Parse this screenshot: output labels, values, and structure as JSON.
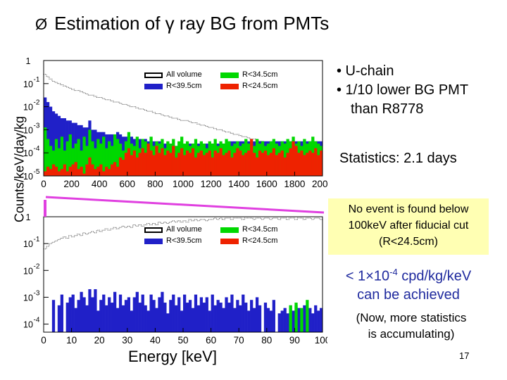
{
  "title": {
    "arrow_glyph": "Ø",
    "text": "Estimation of γ ray BG from PMTs"
  },
  "ylabel": "Counts/keV/day/kg",
  "xlabel": "Energy [keV]",
  "bullets": [
    "• U-chain",
    "• 1/10 lower BG PMT",
    "than R8778"
  ],
  "statistics": "Statistics: 2.1 days",
  "note": [
    "No event is found below",
    "100keV after fiducial cut",
    "(R<24.5cm)"
  ],
  "limit": {
    "prefix": "< 1×10",
    "exp": "-4",
    "suffix": " cpd/kg/keV",
    "line2": "can be achieved"
  },
  "now": [
    "(Now, more statistics",
    "is accumulating)"
  ],
  "page_number": "17",
  "legend": [
    {
      "label": "All volume",
      "color": "#ffffff"
    },
    {
      "label": "R<39.5cm",
      "color": "#2020c8"
    },
    {
      "label": "R<34.5cm",
      "color": "#00d800"
    },
    {
      "label": "R<24.5cm",
      "color": "#ee2200"
    }
  ],
  "chart_data": [
    {
      "type": "bar",
      "xlim": [
        0,
        2000
      ],
      "x_ticks": [
        "0",
        "200",
        "400",
        "600",
        "800",
        "1000",
        "1200",
        "1400",
        "1600",
        "1800",
        "2000"
      ],
      "y_ticks": [
        {
          "base": "1",
          "exp": ""
        },
        {
          "base": "10",
          "exp": "-1"
        },
        {
          "base": "10",
          "exp": "-2"
        },
        {
          "base": "10",
          "exp": "-3"
        },
        {
          "base": "10",
          "exp": "-4"
        },
        {
          "base": "10",
          "exp": "-5"
        }
      ],
      "ylim_log10": [
        -5,
        0
      ],
      "bin_width": 20,
      "series": [
        {
          "name": "All volume",
          "values": [
            -0.6,
            -0.7,
            -0.8,
            -0.9,
            -0.95,
            -1.0,
            -1.05,
            -1.1,
            -1.15,
            -1.2,
            -1.25,
            -1.3,
            -1.3,
            -1.35,
            -1.4,
            -1.45,
            -1.5,
            -1.5,
            -1.55,
            -1.6,
            -1.6,
            -1.65,
            -1.7,
            -1.7,
            -1.75,
            -1.8,
            -1.8,
            -1.85,
            -1.9,
            -1.9,
            -1.95,
            -2.0,
            -2.0,
            -2.05,
            -2.1,
            -2.1,
            -2.15,
            -2.2,
            -2.2,
            -2.25,
            -2.3,
            -2.3,
            -2.35,
            -2.4,
            -2.4,
            -2.45,
            -2.5,
            -2.5,
            -2.55,
            -2.6,
            -2.6,
            -2.6,
            -2.65,
            -2.7,
            -2.7,
            -2.75,
            -2.8,
            -2.8,
            -2.85,
            -2.9,
            -2.9,
            -2.95,
            -3.0,
            -3.0,
            -3.05,
            -3.1,
            -3.1,
            -3.15,
            -3.2,
            -3.2,
            -3.25,
            -3.3,
            -3.3,
            -3.35,
            -3.4,
            -3.4,
            -3.45,
            -3.5,
            -3.5,
            -3.55,
            -3.6,
            -3.6,
            -3.65,
            -3.7,
            -3.7,
            -3.75,
            -3.8,
            -3.8,
            -3.85,
            -3.9,
            -3.9,
            -3.95,
            -4.0,
            -4.0,
            -4.05,
            -4.1,
            -4.1,
            -4.15,
            -4.2,
            -4.2
          ]
        },
        {
          "name": "R<39.5cm",
          "values": [
            -1.6,
            -1.8,
            -2.0,
            -2.2,
            -2.3,
            -2.4,
            -2.5,
            -2.5,
            -2.6,
            -2.6,
            -2.7,
            -2.7,
            -2.8,
            -2.8,
            -2.9,
            -2.9,
            -2.6,
            -3.0,
            -3.0,
            -3.1,
            -3.1,
            -3.1,
            -3.2,
            -3.2,
            -3.2,
            -3.2,
            -3.1,
            -3.2,
            -3.3,
            -3.3,
            -3.3,
            -3.3,
            -3.4,
            -3.4,
            -3.4,
            -3.4,
            -3.4,
            -3.5,
            -3.5,
            -3.5,
            -3.5,
            -3.5,
            -3.6,
            -3.6,
            -3.6,
            -3.6,
            -3.7,
            -3.7,
            -3.7,
            -3.7,
            -3.7,
            -3.7,
            -3.6,
            -3.6,
            -3.6,
            -3.6,
            -3.6,
            -3.6,
            -3.6,
            -3.6,
            -3.6,
            -3.6,
            -3.6,
            -3.6,
            -3.6,
            -3.6,
            -3.5,
            -3.5,
            -3.5,
            -3.5,
            -3.5,
            -3.5,
            -3.5,
            -3.5,
            -3.5,
            -3.5,
            -3.5,
            -3.5,
            -3.5,
            -3.5,
            -3.5,
            -3.5,
            -3.5,
            -3.5,
            -3.5,
            -3.5,
            -3.5,
            -3.5,
            -3.5,
            -3.5,
            -3.5,
            -3.5,
            -3.5,
            -3.5,
            -3.5,
            -3.5,
            -3.5,
            -3.5,
            -3.5,
            -3.5
          ]
        },
        {
          "name": "R<34.5cm",
          "values": [
            -2.9,
            -3.4,
            -3.7,
            -3.9,
            -3.4,
            -3.8,
            -3.3,
            -3.9,
            -3.5,
            -3.2,
            -3.8,
            -3.6,
            -3.4,
            -3.9,
            -3.3,
            -3.7,
            -3.0,
            -3.5,
            -3.8,
            -3.4,
            -3.6,
            -3.3,
            -3.8,
            -3.5,
            -3.7,
            -3.2,
            -3.4,
            -3.6,
            -3.9,
            -3.5,
            -3.1,
            -3.6,
            -3.7,
            -3.3,
            -3.8,
            -3.4,
            -3.5,
            -3.6,
            -3.3,
            -3.7,
            -3.5,
            -3.6,
            -3.4,
            -3.8,
            -3.5,
            -3.6,
            -3.4,
            -3.7,
            -3.5,
            -3.3,
            -3.6,
            -3.5,
            -3.7,
            -3.6,
            -3.4,
            -3.7,
            -3.5,
            -3.6,
            -3.8,
            -3.5,
            -3.6,
            -3.4,
            -3.7,
            -3.5,
            -3.6,
            -3.4,
            -3.5,
            -3.7,
            -3.6,
            -3.5,
            -3.7,
            -3.6,
            -3.4,
            -3.6,
            -3.5,
            -3.7,
            -3.4,
            -3.6,
            -3.5,
            -3.7,
            -3.6,
            -3.5,
            -3.4,
            -3.6,
            -3.7,
            -3.5,
            -3.6,
            -3.4,
            -3.5,
            -3.3,
            -3.6,
            -3.5,
            -3.7,
            -3.4,
            -3.6,
            -3.5,
            -3.3,
            -3.5,
            -3.6,
            -3.7
          ]
        },
        {
          "name": "R<24.5cm",
          "values": [
            -4.8,
            -4.6,
            -4.7,
            -4.5,
            -4.6,
            -4.8,
            -4.7,
            -4.5,
            -4.8,
            -4.6,
            -4.5,
            -4.4,
            -4.7,
            -4.6,
            -4.9,
            -4.5,
            -4.2,
            -4.5,
            -4.7,
            -4.6,
            -4.5,
            -4.8,
            -4.6,
            -4.7,
            -4.5,
            -4.4,
            -4.6,
            -4.2,
            -4.3,
            -4.0,
            -3.8,
            -4.1,
            -3.9,
            -4.2,
            -4.0,
            -3.8,
            -4.0,
            -3.6,
            -3.9,
            -4.1,
            -3.7,
            -4.0,
            -3.8,
            -4.1,
            -3.9,
            -4.0,
            -3.7,
            -4.2,
            -4.0,
            -3.8,
            -4.1,
            -3.9,
            -4.0,
            -3.8,
            -4.2,
            -4.0,
            -3.9,
            -4.1,
            -4.0,
            -3.9,
            -4.2,
            -3.9,
            -4.0,
            -3.8,
            -4.1,
            -4.0,
            -3.9,
            -4.2,
            -4.0,
            -3.8,
            -3.9,
            -4.1,
            -4.0,
            -3.9,
            -3.4,
            -4.0,
            -4.2,
            -3.9,
            -4.0,
            -3.9,
            -4.1,
            -4.0,
            -3.8,
            -4.1,
            -4.0,
            -3.9,
            -4.2,
            -4.0,
            -3.8,
            -3.5,
            -3.7,
            -4.0,
            -3.9,
            -4.1,
            -4.0,
            -3.9,
            -4.0,
            -3.8,
            -4.1,
            -3.9
          ]
        }
      ]
    },
    {
      "type": "bar",
      "xlim": [
        0,
        100
      ],
      "x_ticks": [
        "0",
        "10",
        "20",
        "30",
        "40",
        "50",
        "60",
        "70",
        "80",
        "90",
        "100"
      ],
      "y_ticks": [
        {
          "base": "1",
          "exp": ""
        },
        {
          "base": "10",
          "exp": "-1"
        },
        {
          "base": "10",
          "exp": "-2"
        },
        {
          "base": "10",
          "exp": "-3"
        },
        {
          "base": "10",
          "exp": "-4"
        }
      ],
      "ylim_log10": [
        -4.3,
        0
      ],
      "bin_width": 1,
      "series": [
        {
          "name": "All volume",
          "values": [
            -1.2,
            -1.1,
            -1.0,
            -0.95,
            -0.9,
            -0.85,
            -0.8,
            -0.75,
            -0.8,
            -0.7,
            -0.75,
            -0.7,
            -0.65,
            -0.7,
            -0.6,
            -0.65,
            -0.6,
            -0.55,
            -0.6,
            -0.5,
            -0.55,
            -0.5,
            -0.45,
            -0.5,
            -0.45,
            -0.4,
            -0.45,
            -0.4,
            -0.35,
            -0.4,
            -0.35,
            -0.4,
            -0.3,
            -0.35,
            -0.3,
            -0.35,
            -0.3,
            -0.25,
            -0.3,
            -0.25,
            -0.3,
            -0.2,
            -0.25,
            -0.2,
            -0.25,
            -0.2,
            -0.15,
            -0.2,
            -0.15,
            -0.2,
            -0.15,
            -0.2,
            -0.1,
            -0.15,
            -0.1,
            -0.15,
            -0.1,
            -0.1,
            -0.15,
            -0.1,
            -0.1,
            -0.05,
            -0.1,
            -0.05,
            -0.1,
            -0.05,
            -0.05,
            -0.1,
            -0.05,
            -0.05,
            -0.05,
            -0.1,
            -0.05,
            -0.05,
            -0.05,
            -0.1,
            -0.05,
            -0.05,
            -0.1,
            -0.05,
            -0.05,
            -0.1,
            -0.05,
            -0.05,
            -0.1,
            -0.05,
            -0.05,
            -0.1,
            -0.05,
            -0.05,
            -0.1,
            -0.05,
            -0.05,
            -0.1,
            -0.05,
            -0.05,
            -0.1,
            -0.05,
            -0.05,
            -0.1
          ]
        },
        {
          "name": "R<39.5cm",
          "values": [
            -4.3,
            -4.3,
            -4.3,
            -3.1,
            -4.3,
            -3.3,
            -2.9,
            -4.3,
            -3.2,
            -3.0,
            -2.9,
            -3.4,
            -3.1,
            -2.8,
            -3.0,
            -3.3,
            -2.7,
            -3.0,
            -2.7,
            -3.5,
            -3.1,
            -2.9,
            -3.3,
            -3.0,
            -3.2,
            -2.8,
            -3.4,
            -2.9,
            -3.3,
            -3.1,
            -3.0,
            -3.5,
            -3.0,
            -2.8,
            -3.2,
            -2.9,
            -3.3,
            -3.5,
            -2.9,
            -3.1,
            -3.4,
            -3.0,
            -2.8,
            -3.2,
            -3.6,
            -3.1,
            -2.9,
            -3.3,
            -3.0,
            -3.5,
            -2.9,
            -3.2,
            -3.1,
            -3.4,
            -2.9,
            -3.3,
            -3.0,
            -3.2,
            -3.0,
            -3.5,
            -2.9,
            -3.3,
            -3.1,
            -3.2,
            -3.4,
            -3.0,
            -3.2,
            -2.9,
            -3.4,
            -3.1,
            -3.3,
            -2.9,
            -3.2,
            -3.5,
            -3.1,
            -3.4,
            -3.0,
            -3.3,
            -4.3,
            -3.2,
            -3.4,
            -3.5,
            -3.1,
            -4.3,
            -3.6,
            -3.5,
            -3.4,
            -3.6,
            -3.3,
            -3.5,
            -3.3,
            -3.4,
            -3.6,
            -3.3,
            -3.5,
            -3.4,
            -3.6,
            -3.3,
            -3.5,
            -3.4
          ]
        },
        {
          "name": "R<34.5cm",
          "values": [
            -4.3,
            -4.3,
            -4.3,
            -4.3,
            -4.3,
            -4.3,
            -4.3,
            -4.3,
            -4.3,
            -4.3,
            -4.3,
            -4.3,
            -4.3,
            -4.3,
            -4.3,
            -4.3,
            -4.3,
            -4.3,
            -4.3,
            -4.3,
            -4.3,
            -4.3,
            -4.3,
            -4.3,
            -4.3,
            -4.3,
            -4.3,
            -4.3,
            -4.3,
            -4.3,
            -4.3,
            -4.3,
            -4.3,
            -4.3,
            -4.3,
            -4.3,
            -4.3,
            -4.3,
            -4.3,
            -4.3,
            -4.3,
            -4.3,
            -4.3,
            -4.3,
            -4.3,
            -4.3,
            -4.3,
            -4.3,
            -4.3,
            -4.3,
            -4.3,
            -4.3,
            -4.3,
            -4.3,
            -4.3,
            -4.3,
            -4.3,
            -4.3,
            -4.3,
            -4.3,
            -4.3,
            -4.3,
            -4.3,
            -4.3,
            -4.3,
            -4.3,
            -4.3,
            -4.3,
            -4.3,
            -4.3,
            -4.3,
            -4.3,
            -4.3,
            -4.3,
            -4.3,
            -4.3,
            -4.3,
            -4.3,
            -4.3,
            -4.3,
            -4.3,
            -4.3,
            -4.3,
            -4.3,
            -4.3,
            -4.3,
            -4.3,
            -4.3,
            -3.3,
            -4.3,
            -3.2,
            -4.3,
            -3.4,
            -4.3,
            -3.1,
            -4.3,
            -4.3,
            -4.3,
            -4.3,
            -4.3
          ]
        },
        {
          "name": "R<24.5cm",
          "values": [
            -4.3,
            -4.3,
            -4.3,
            -4.3,
            -4.3,
            -4.3,
            -4.3,
            -4.3,
            -4.3,
            -4.3,
            -4.3,
            -4.3,
            -4.3,
            -4.3,
            -4.3,
            -4.3,
            -4.3,
            -4.3,
            -4.3,
            -4.3,
            -4.3,
            -4.3,
            -4.3,
            -4.3,
            -4.3,
            -4.3,
            -4.3,
            -4.3,
            -4.3,
            -4.3,
            -4.3,
            -4.3,
            -4.3,
            -4.3,
            -4.3,
            -4.3,
            -4.3,
            -4.3,
            -4.3,
            -4.3,
            -4.3,
            -4.3,
            -4.3,
            -4.3,
            -4.3,
            -4.3,
            -4.3,
            -4.3,
            -4.3,
            -4.3,
            -4.3,
            -4.3,
            -4.3,
            -4.3,
            -4.3,
            -4.3,
            -4.3,
            -4.3,
            -4.3,
            -4.3,
            -4.3,
            -4.3,
            -4.3,
            -4.3,
            -4.3,
            -4.3,
            -4.3,
            -4.3,
            -4.3,
            -4.3,
            -4.3,
            -4.3,
            -4.3,
            -4.3,
            -4.3,
            -4.3,
            -4.3,
            -4.3,
            -4.3,
            -4.3,
            -4.3,
            -4.3,
            -4.3,
            -4.3,
            -4.3,
            -4.3,
            -4.3,
            -4.3,
            -4.3,
            -4.3,
            -4.3,
            -4.3,
            -4.3,
            -4.3,
            -4.3,
            -4.3,
            -4.3,
            -4.3,
            -4.3,
            -4.3
          ]
        }
      ]
    }
  ]
}
